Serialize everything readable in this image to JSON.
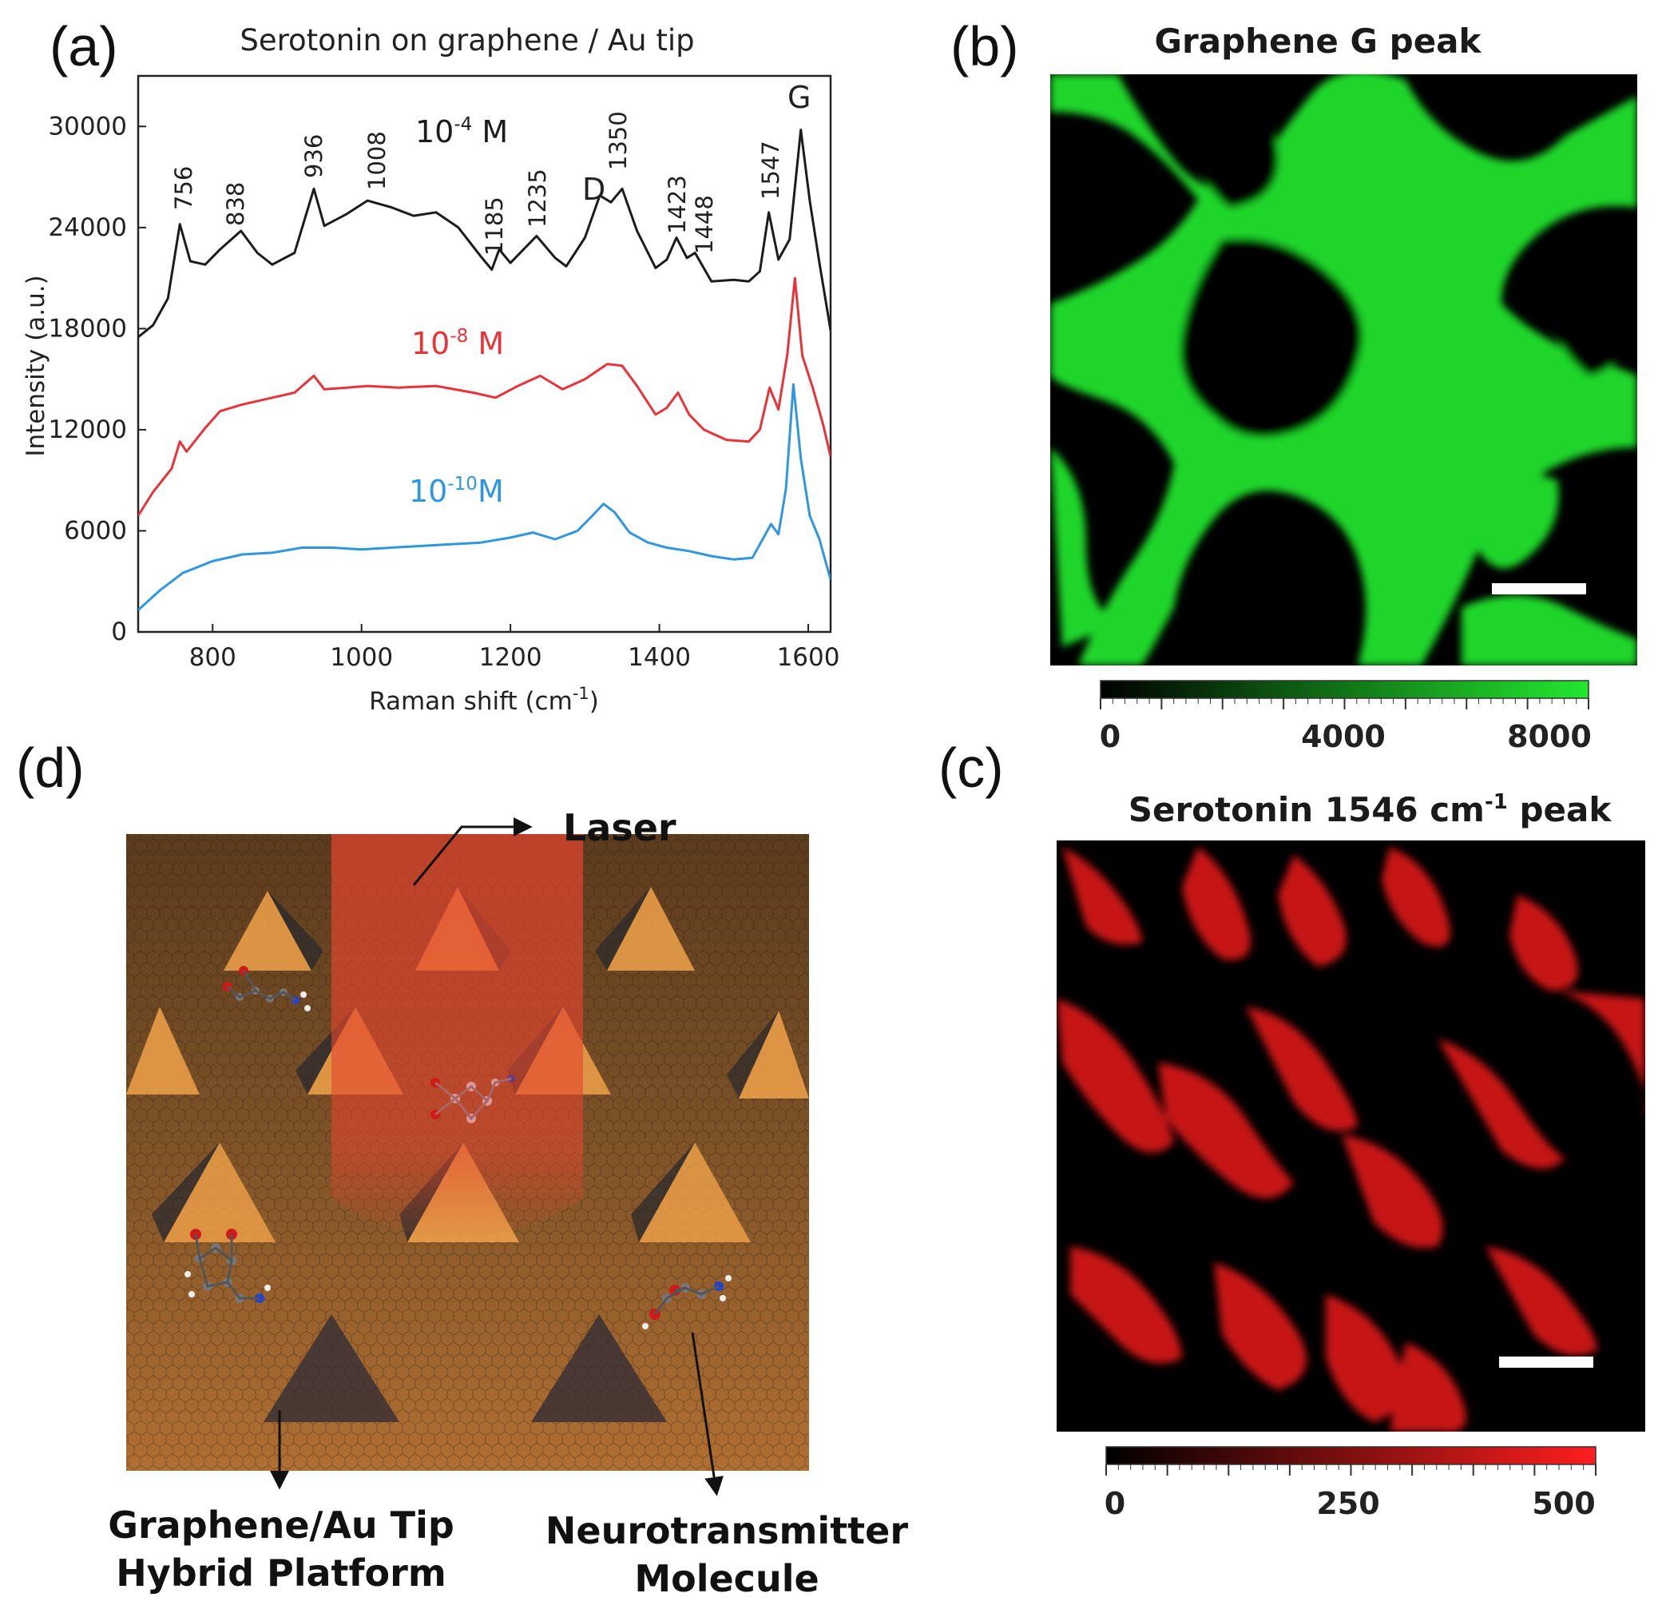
{
  "colors": {
    "black_series": "#1c1c1c",
    "red_series": "#e8333a",
    "blue_series": "#2f96e0",
    "graphene_green": "#22e82f",
    "serotonin_red": "#ff1e1e",
    "laser": "#e5452e",
    "platform_brown": "#9a6432",
    "tip_orange": "#f0a24a"
  },
  "panel_a": {
    "label": "(a)",
    "chart_data": {
      "type": "line",
      "title": "Serotonin on graphene / Au tip",
      "xlabel_main": "Raman shift (cm",
      "xlabel_sup": "-1",
      "xlabel_end": ")",
      "ylabel": "Intensity (a.u.)",
      "xlim": [
        700,
        1630
      ],
      "ylim": [
        0,
        33000
      ],
      "xticks": [
        800,
        1000,
        1200,
        1400,
        1600
      ],
      "yticks": [
        0,
        6000,
        12000,
        18000,
        24000,
        30000
      ],
      "series": [
        {
          "name": "10-4 M",
          "label_base": "10",
          "label_exp": "-4",
          "label_unit": " M",
          "color": "#1c1c1c",
          "points": [
            [
              700,
              17500
            ],
            [
              720,
              18200
            ],
            [
              740,
              19800
            ],
            [
              756,
              24200
            ],
            [
              770,
              22000
            ],
            [
              790,
              21800
            ],
            [
              810,
              22700
            ],
            [
              838,
              23800
            ],
            [
              860,
              22500
            ],
            [
              880,
              21800
            ],
            [
              910,
              22500
            ],
            [
              936,
              26300
            ],
            [
              950,
              24100
            ],
            [
              980,
              24800
            ],
            [
              1008,
              25600
            ],
            [
              1040,
              25200
            ],
            [
              1070,
              24700
            ],
            [
              1100,
              24900
            ],
            [
              1130,
              24000
            ],
            [
              1160,
              22300
            ],
            [
              1175,
              21500
            ],
            [
              1185,
              22700
            ],
            [
              1200,
              21900
            ],
            [
              1235,
              23500
            ],
            [
              1260,
              22200
            ],
            [
              1275,
              21700
            ],
            [
              1300,
              23400
            ],
            [
              1320,
              25900
            ],
            [
              1335,
              25500
            ],
            [
              1350,
              26300
            ],
            [
              1370,
              23800
            ],
            [
              1395,
              21600
            ],
            [
              1410,
              22100
            ],
            [
              1423,
              23400
            ],
            [
              1437,
              22200
            ],
            [
              1448,
              22500
            ],
            [
              1470,
              20800
            ],
            [
              1500,
              20900
            ],
            [
              1520,
              20800
            ],
            [
              1535,
              21400
            ],
            [
              1547,
              24900
            ],
            [
              1560,
              22100
            ],
            [
              1575,
              23300
            ],
            [
              1590,
              29800
            ],
            [
              1602,
              25600
            ],
            [
              1615,
              21900
            ],
            [
              1630,
              17900
            ]
          ]
        },
        {
          "name": "10-8 M",
          "label_base": "10",
          "label_exp": "-8",
          "label_unit": " M",
          "color": "#e8333a",
          "points": [
            [
              700,
              6900
            ],
            [
              720,
              8300
            ],
            [
              745,
              9700
            ],
            [
              756,
              11300
            ],
            [
              765,
              10700
            ],
            [
              790,
              12100
            ],
            [
              810,
              13100
            ],
            [
              840,
              13500
            ],
            [
              880,
              13900
            ],
            [
              910,
              14200
            ],
            [
              936,
              15200
            ],
            [
              950,
              14400
            ],
            [
              980,
              14500
            ],
            [
              1008,
              14600
            ],
            [
              1050,
              14500
            ],
            [
              1100,
              14600
            ],
            [
              1150,
              14200
            ],
            [
              1180,
              13900
            ],
            [
              1210,
              14600
            ],
            [
              1240,
              15200
            ],
            [
              1270,
              14400
            ],
            [
              1300,
              15000
            ],
            [
              1330,
              15900
            ],
            [
              1350,
              15800
            ],
            [
              1370,
              14600
            ],
            [
              1395,
              12900
            ],
            [
              1410,
              13300
            ],
            [
              1425,
              14200
            ],
            [
              1440,
              12900
            ],
            [
              1460,
              12000
            ],
            [
              1490,
              11400
            ],
            [
              1520,
              11300
            ],
            [
              1535,
              12000
            ],
            [
              1548,
              14500
            ],
            [
              1560,
              13200
            ],
            [
              1572,
              16500
            ],
            [
              1582,
              21000
            ],
            [
              1592,
              16400
            ],
            [
              1606,
              14500
            ],
            [
              1620,
              12300
            ],
            [
              1630,
              10400
            ]
          ]
        },
        {
          "name": "10-10 M",
          "label_base": "10",
          "label_exp": "-10",
          "label_unit": "M",
          "color": "#2f96e0",
          "points": [
            [
              700,
              1300
            ],
            [
              730,
              2500
            ],
            [
              760,
              3500
            ],
            [
              800,
              4200
            ],
            [
              840,
              4600
            ],
            [
              880,
              4700
            ],
            [
              920,
              5000
            ],
            [
              960,
              5000
            ],
            [
              1000,
              4900
            ],
            [
              1040,
              5000
            ],
            [
              1080,
              5100
            ],
            [
              1120,
              5200
            ],
            [
              1160,
              5300
            ],
            [
              1200,
              5600
            ],
            [
              1230,
              5900
            ],
            [
              1260,
              5500
            ],
            [
              1290,
              6000
            ],
            [
              1310,
              6900
            ],
            [
              1325,
              7600
            ],
            [
              1340,
              7100
            ],
            [
              1360,
              5900
            ],
            [
              1385,
              5300
            ],
            [
              1410,
              5000
            ],
            [
              1440,
              4800
            ],
            [
              1470,
              4500
            ],
            [
              1500,
              4300
            ],
            [
              1525,
              4400
            ],
            [
              1540,
              5600
            ],
            [
              1550,
              6400
            ],
            [
              1560,
              5800
            ],
            [
              1570,
              8500
            ],
            [
              1580,
              14700
            ],
            [
              1590,
              10300
            ],
            [
              1602,
              6900
            ],
            [
              1615,
              5500
            ],
            [
              1630,
              3100
            ]
          ]
        }
      ],
      "peak_labels": [
        "756",
        "838",
        "936",
        "1008",
        "1185",
        "1235",
        "D",
        "1350",
        "1423",
        "1448",
        "1547",
        "G"
      ]
    }
  },
  "panel_b": {
    "label": "(b)",
    "title": "Graphene G peak",
    "colorbar_ticks": [
      "0",
      "4000",
      "8000"
    ],
    "colorbar_range": [
      0,
      8500
    ]
  },
  "panel_c": {
    "label": "(c)",
    "title_main": "Serotonin 1546 cm",
    "title_sup": "-1",
    "title_end": " peak",
    "colorbar_ticks": [
      "0",
      "250",
      "500"
    ],
    "colorbar_range": [
      0,
      500
    ]
  },
  "panel_d": {
    "label": "(d)",
    "laser_label": "Laser",
    "platform_label_line1": "Graphene/Au Tip",
    "platform_label_line2": "Hybrid Platform",
    "molecule_label_line1": "Neurotransmitter",
    "molecule_label_line2": "Molecule"
  }
}
